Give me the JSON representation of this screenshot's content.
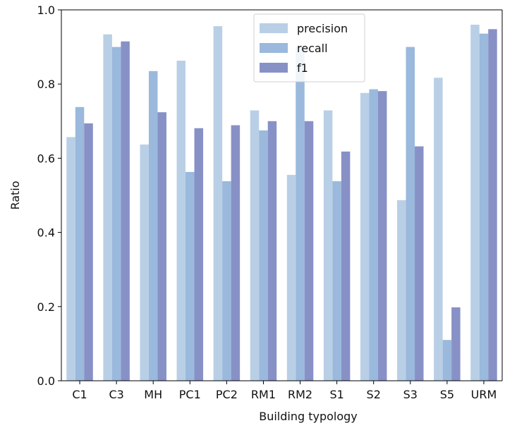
{
  "chart_data": {
    "type": "bar",
    "xlabel": "Building typology",
    "ylabel": "Ratio",
    "ylim": [
      0.0,
      1.0
    ],
    "yticks": [
      "0.0",
      "0.2",
      "0.4",
      "0.6",
      "0.8",
      "1.0"
    ],
    "grid": false,
    "legend_position": "top-center",
    "categories": [
      "C1",
      "C3",
      "MH",
      "PC1",
      "PC2",
      "RM1",
      "RM2",
      "S1",
      "S2",
      "S3",
      "S5",
      "URM"
    ],
    "series": [
      {
        "name": "precision",
        "color": "#b9cfe6",
        "values": [
          0.657,
          0.934,
          0.637,
          0.863,
          0.956,
          0.729,
          0.555,
          0.729,
          0.776,
          0.487,
          0.817,
          0.96
        ]
      },
      {
        "name": "recall",
        "color": "#9ab9dc",
        "values": [
          0.738,
          0.9,
          0.835,
          0.563,
          0.538,
          0.675,
          0.9,
          0.538,
          0.786,
          0.9,
          0.11,
          0.936
        ]
      },
      {
        "name": "f1",
        "color": "#8891c6",
        "values": [
          0.694,
          0.915,
          0.724,
          0.681,
          0.689,
          0.7,
          0.7,
          0.618,
          0.781,
          0.632,
          0.198,
          0.948
        ]
      }
    ]
  }
}
